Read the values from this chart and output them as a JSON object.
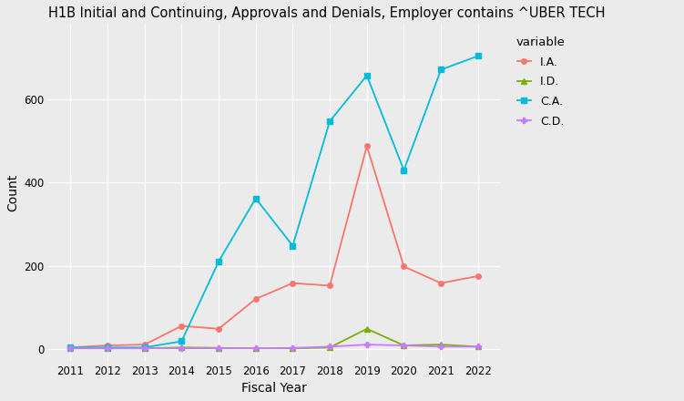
{
  "title": "H1B Initial and Continuing, Approvals and Denials, Employer contains ^UBER TECH",
  "xlabel": "Fiscal Year",
  "ylabel": "Count",
  "legend_title": "variable",
  "years": [
    2011,
    2012,
    2013,
    2014,
    2015,
    2016,
    2017,
    2018,
    2019,
    2020,
    2021,
    2022
  ],
  "series": {
    "I.A.": {
      "values": [
        3,
        8,
        10,
        55,
        48,
        120,
        158,
        152,
        488,
        198,
        158,
        175
      ],
      "color": "#F8766D",
      "marker": "o",
      "markersize": 4
    },
    "I.D.": {
      "values": [
        1,
        1,
        1,
        3,
        2,
        1,
        1,
        3,
        48,
        8,
        10,
        5
      ],
      "color": "#7CAE00",
      "marker": "^",
      "markersize": 4
    },
    "C.A.": {
      "values": [
        3,
        3,
        3,
        18,
        210,
        362,
        248,
        548,
        658,
        430,
        672,
        705
      ],
      "color": "#00BCD8",
      "marker": "s",
      "markersize": 4
    },
    "C.D.": {
      "values": [
        1,
        1,
        1,
        1,
        1,
        1,
        2,
        5,
        10,
        8,
        5,
        5
      ],
      "color": "#C77CFF",
      "marker": "P",
      "markersize": 4
    }
  },
  "ylim": [
    -30,
    780
  ],
  "yticks": [
    0,
    200,
    400,
    600
  ],
  "xlim": [
    2010.4,
    2022.6
  ],
  "background_color": "#EBEBEB",
  "plot_background_color": "#EBEBEB",
  "grid_color": "#FFFFFF",
  "title_fontsize": 10.5,
  "axis_label_fontsize": 10,
  "legend_fontsize": 9,
  "tick_fontsize": 8.5,
  "linewidth": 1.3
}
